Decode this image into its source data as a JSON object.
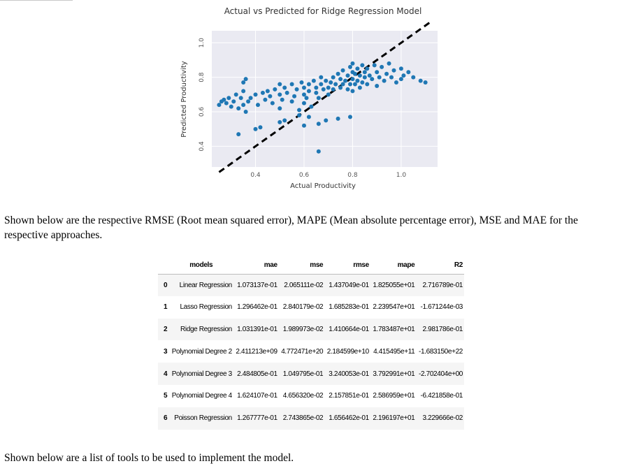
{
  "chart_data": {
    "type": "scatter",
    "title": "Actual vs Predicted for Ridge Regression Model",
    "xlabel": "Actual Productivity",
    "ylabel": "Predicted Productivity",
    "xlim": [
      0.22,
      1.15
    ],
    "ylim": [
      0.28,
      1.07
    ],
    "xticks": [
      0.4,
      0.6,
      0.8,
      1.0
    ],
    "yticks": [
      0.4,
      0.6,
      0.8,
      1.0
    ],
    "xtick_labels": [
      "0.4",
      "0.6",
      "0.8",
      "1.0"
    ],
    "ytick_labels": [
      "0.4",
      "0.6",
      "0.8",
      "1.0"
    ],
    "grid": true,
    "reference_line": {
      "style": "dashed",
      "color": "#000000",
      "x": [
        0.25,
        1.12
      ],
      "y": [
        0.25,
        1.12
      ]
    },
    "point_color": "#1f77b4",
    "background_color": "#eaeaf2",
    "x": [
      0.25,
      0.26,
      0.27,
      0.28,
      0.29,
      0.3,
      0.31,
      0.32,
      0.33,
      0.34,
      0.35,
      0.35,
      0.36,
      0.37,
      0.38,
      0.4,
      0.41,
      0.43,
      0.44,
      0.45,
      0.46,
      0.47,
      0.48,
      0.5,
      0.5,
      0.5,
      0.51,
      0.52,
      0.53,
      0.55,
      0.55,
      0.56,
      0.57,
      0.58,
      0.59,
      0.6,
      0.6,
      0.6,
      0.61,
      0.62,
      0.62,
      0.63,
      0.64,
      0.65,
      0.65,
      0.66,
      0.67,
      0.67,
      0.68,
      0.69,
      0.7,
      0.7,
      0.71,
      0.72,
      0.72,
      0.73,
      0.74,
      0.75,
      0.75,
      0.76,
      0.76,
      0.77,
      0.78,
      0.78,
      0.79,
      0.79,
      0.8,
      0.8,
      0.8,
      0.8,
      0.81,
      0.81,
      0.82,
      0.82,
      0.83,
      0.83,
      0.84,
      0.84,
      0.85,
      0.85,
      0.86,
      0.86,
      0.87,
      0.88,
      0.89,
      0.9,
      0.9,
      0.91,
      0.92,
      0.93,
      0.94,
      0.95,
      0.96,
      0.97,
      0.98,
      1.0,
      1.0,
      1.01,
      1.03,
      1.05,
      1.08,
      1.1,
      0.33,
      0.4,
      0.42,
      0.5,
      0.52,
      0.58,
      0.6,
      0.62,
      0.66,
      0.69,
      0.74,
      0.79,
      0.35,
      0.36,
      0.66
    ],
    "y": [
      0.64,
      0.66,
      0.67,
      0.65,
      0.68,
      0.63,
      0.66,
      0.7,
      0.62,
      0.68,
      0.64,
      0.72,
      0.6,
      0.66,
      0.68,
      0.7,
      0.64,
      0.71,
      0.67,
      0.72,
      0.69,
      0.65,
      0.73,
      0.62,
      0.7,
      0.76,
      0.67,
      0.74,
      0.71,
      0.66,
      0.76,
      0.69,
      0.73,
      0.61,
      0.77,
      0.65,
      0.7,
      0.74,
      0.68,
      0.76,
      0.72,
      0.63,
      0.78,
      0.71,
      0.74,
      0.68,
      0.76,
      0.8,
      0.73,
      0.78,
      0.7,
      0.74,
      0.77,
      0.73,
      0.8,
      0.76,
      0.82,
      0.74,
      0.79,
      0.76,
      0.84,
      0.78,
      0.73,
      0.81,
      0.76,
      0.86,
      0.72,
      0.79,
      0.83,
      0.88,
      0.76,
      0.82,
      0.78,
      0.85,
      0.74,
      0.81,
      0.77,
      0.87,
      0.8,
      0.83,
      0.76,
      0.85,
      0.81,
      0.79,
      0.87,
      0.75,
      0.83,
      0.8,
      0.86,
      0.78,
      0.82,
      0.88,
      0.8,
      0.84,
      0.77,
      0.79,
      0.85,
      0.81,
      0.83,
      0.8,
      0.78,
      0.77,
      0.47,
      0.5,
      0.51,
      0.54,
      0.55,
      0.58,
      0.52,
      0.57,
      0.53,
      0.55,
      0.56,
      0.57,
      0.77,
      0.79,
      0.37
    ]
  },
  "paragraph_1": "Shown below are the respective RMSE (Root mean squared error), MAPE (Mean absolute percentage error), MSE and MAE for the respective approaches.",
  "table": {
    "columns": [
      "models",
      "mae",
      "mse",
      "rmse",
      "mape",
      "R2"
    ],
    "rows": [
      {
        "index": "0",
        "models": "Linear Regression",
        "mae": "1.073137e-01",
        "mse": "2.065111e-02",
        "rmse": "1.437049e-01",
        "mape": "1.825055e+01",
        "R2": "2.716789e-01"
      },
      {
        "index": "1",
        "models": "Lasso Regression",
        "mae": "1.296462e-01",
        "mse": "2.840179e-02",
        "rmse": "1.685283e-01",
        "mape": "2.239547e+01",
        "R2": "-1.671244e-03"
      },
      {
        "index": "2",
        "models": "Ridge Regression",
        "mae": "1.031391e-01",
        "mse": "1.989973e-02",
        "rmse": "1.410664e-01",
        "mape": "1.783487e+01",
        "R2": "2.981786e-01"
      },
      {
        "index": "3",
        "models": "Polynomial Degree 2",
        "mae": "2.411213e+09",
        "mse": "4.772471e+20",
        "rmse": "2.184599e+10",
        "mape": "4.415495e+11",
        "R2": "-1.683150e+22"
      },
      {
        "index": "4",
        "models": "Polynomial Degree 3",
        "mae": "2.484805e-01",
        "mse": "1.049795e-01",
        "rmse": "3.240053e-01",
        "mape": "3.792991e+01",
        "R2": "-2.702404e+00"
      },
      {
        "index": "5",
        "models": "Polynomial Degree 4",
        "mae": "1.624107e-01",
        "mse": "4.656320e-02",
        "rmse": "2.157851e-01",
        "mape": "2.586959e+01",
        "R2": "-6.421858e-01"
      },
      {
        "index": "6",
        "models": "Poisson Regression",
        "mae": "1.267777e-01",
        "mse": "2.743865e-02",
        "rmse": "1.656462e-01",
        "mape": "2.196197e+01",
        "R2": "3.229666e-02"
      }
    ]
  },
  "paragraph_2": "Shown below are a list of tools to be used to implement the model."
}
